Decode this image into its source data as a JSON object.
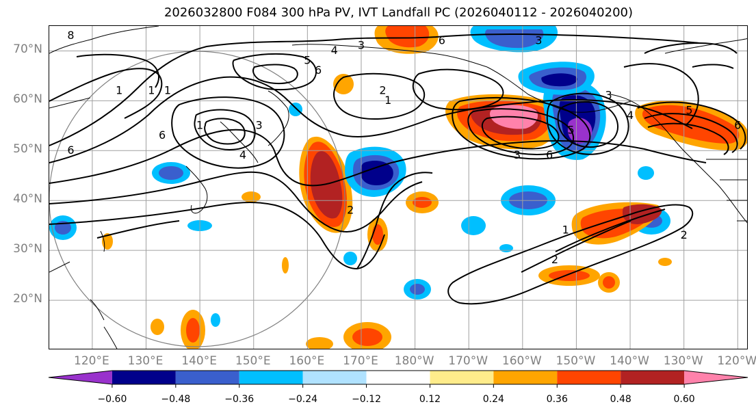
{
  "title": "2026032800 F084 300 hPa PV, IVT Landfall PC (2026040112 - 2026040200)",
  "map": {
    "projection": "PlateCarree (Pacific-centered)",
    "extent": {
      "lon_min": 112,
      "lon_max": 242,
      "lat_min": 10,
      "lat_max": 75
    },
    "gridlines": true,
    "lat_labels": [
      {
        "lat": 70,
        "text": "70°N"
      },
      {
        "lat": 60,
        "text": "60°N"
      },
      {
        "lat": 50,
        "text": "50°N"
      },
      {
        "lat": 40,
        "text": "40°N"
      },
      {
        "lat": 30,
        "text": "30°N"
      },
      {
        "lat": 20,
        "text": "20°N"
      }
    ],
    "lon_labels": [
      {
        "lon": 120,
        "text": "120°E"
      },
      {
        "lon": 130,
        "text": "130°E"
      },
      {
        "lon": 140,
        "text": "140°E"
      },
      {
        "lon": 150,
        "text": "150°E"
      },
      {
        "lon": 160,
        "text": "160°E"
      },
      {
        "lon": 170,
        "text": "170°E"
      },
      {
        "lon": 180,
        "text": "180°W"
      },
      {
        "lon": 190,
        "text": "170°W"
      },
      {
        "lon": 200,
        "text": "160°W"
      },
      {
        "lon": 210,
        "text": "150°W"
      },
      {
        "lon": 220,
        "text": "140°W"
      },
      {
        "lon": 230,
        "text": "130°W"
      },
      {
        "lon": 240,
        "text": "120°W"
      }
    ],
    "contour_labels": [
      {
        "text": "8",
        "lon": 116,
        "lat": 73
      },
      {
        "text": "4",
        "lon": 165,
        "lat": 70
      },
      {
        "text": "3",
        "lon": 170,
        "lat": 71
      },
      {
        "text": "6",
        "lon": 185,
        "lat": 72
      },
      {
        "text": "3",
        "lon": 203,
        "lat": 72
      },
      {
        "text": "5",
        "lon": 160,
        "lat": 68
      },
      {
        "text": "6",
        "lon": 162,
        "lat": 66
      },
      {
        "text": "1",
        "lon": 125,
        "lat": 62
      },
      {
        "text": "1",
        "lon": 131,
        "lat": 62
      },
      {
        "text": "1",
        "lon": 134,
        "lat": 62
      },
      {
        "text": "2",
        "lon": 174,
        "lat": 62
      },
      {
        "text": "1",
        "lon": 175,
        "lat": 60
      },
      {
        "text": "6",
        "lon": 133,
        "lat": 53
      },
      {
        "text": "1",
        "lon": 140,
        "lat": 55
      },
      {
        "text": "3",
        "lon": 151,
        "lat": 55
      },
      {
        "text": "4",
        "lon": 148,
        "lat": 49
      },
      {
        "text": "6",
        "lon": 116,
        "lat": 50
      },
      {
        "text": "3",
        "lon": 216,
        "lat": 61
      },
      {
        "text": "4",
        "lon": 220,
        "lat": 57
      },
      {
        "text": "5",
        "lon": 209,
        "lat": 54
      },
      {
        "text": "6",
        "lon": 205,
        "lat": 49
      },
      {
        "text": "3",
        "lon": 199,
        "lat": 49
      },
      {
        "text": "5",
        "lon": 231,
        "lat": 58
      },
      {
        "text": "6",
        "lon": 240,
        "lat": 55
      },
      {
        "text": "2",
        "lon": 168,
        "lat": 38
      },
      {
        "text": "1",
        "lon": 208,
        "lat": 34
      },
      {
        "text": "2",
        "lon": 230,
        "lat": 33
      },
      {
        "text": "2",
        "lon": 206,
        "lat": 28
      }
    ]
  },
  "colorbar": {
    "extend": "both",
    "colors": [
      "#9932cc",
      "#00008b",
      "#3a5fcd",
      "#00bfff",
      "#b0e2ff",
      "#ffffff",
      "#ffec8b",
      "#ffa500",
      "#ff4500",
      "#b22222",
      "#ff82ab"
    ],
    "ticks": [
      "−0.60",
      "−0.48",
      "−0.36",
      "−0.24",
      "−0.12",
      "0.12",
      "0.24",
      "0.36",
      "0.48",
      "0.60"
    ]
  }
}
